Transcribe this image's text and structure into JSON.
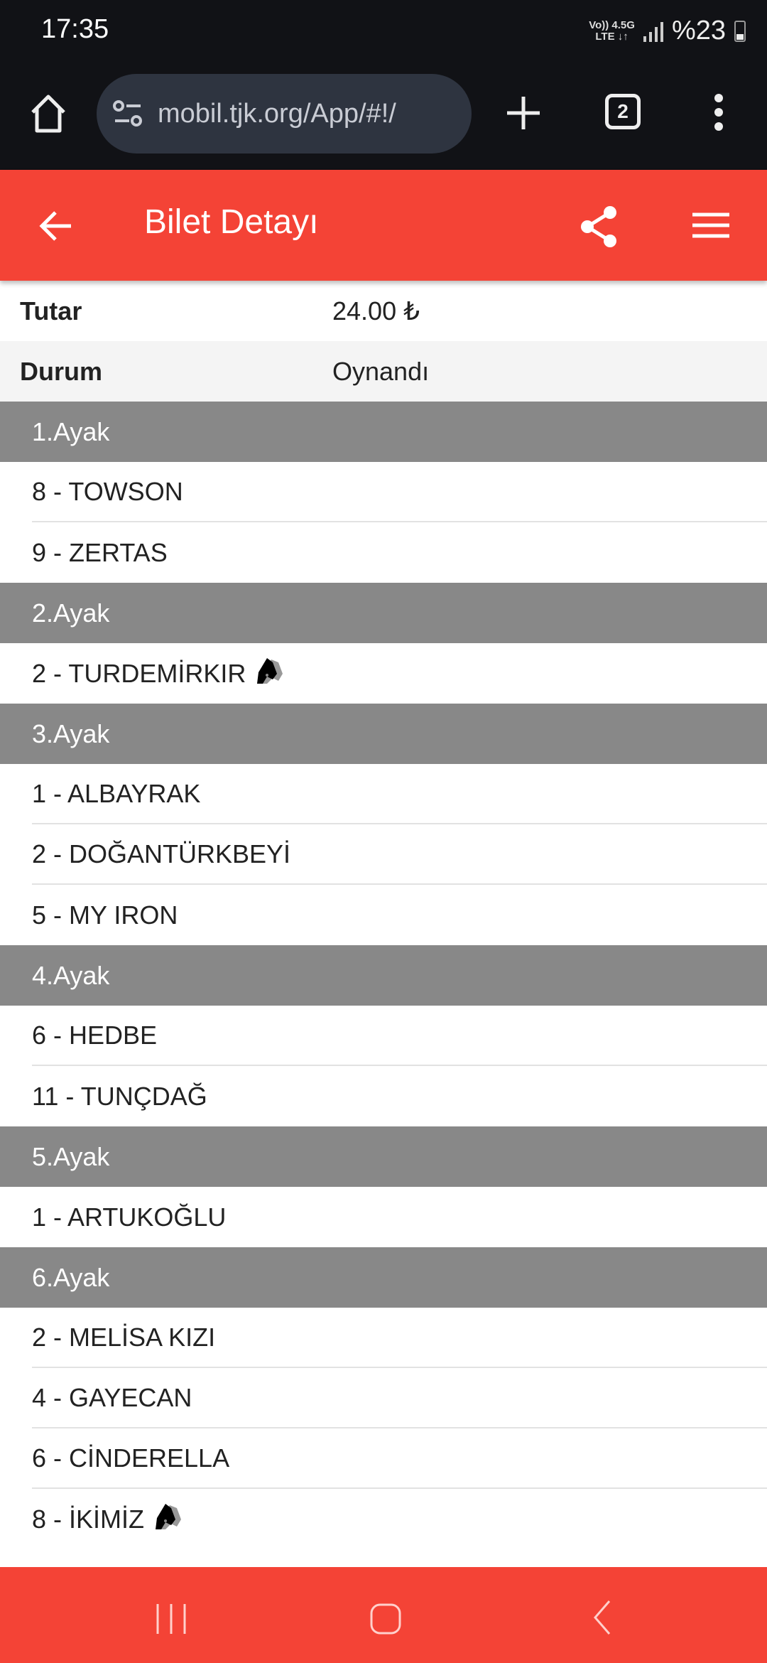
{
  "status_bar": {
    "time": "17:35",
    "network_top": "Vo)) 4.5G",
    "network_bottom": "LTE ↓↑",
    "battery": "%23"
  },
  "browser": {
    "url": "mobil.tjk.org/App/#!/",
    "tab_count": "2",
    "icons": [
      "home-icon",
      "site-settings-icon",
      "new-tab-icon",
      "tabs-icon",
      "more-icon"
    ]
  },
  "app_bar": {
    "title": "Bilet Detayı",
    "accent_color": "#f44336"
  },
  "summary": [
    {
      "label": "Tutar",
      "value": "24.00 ₺"
    },
    {
      "label": "Durum",
      "value": "Oynandı"
    }
  ],
  "legs": [
    {
      "label": "1.Ayak",
      "horses": [
        {
          "name": "8 - TOWSON",
          "icon": false
        },
        {
          "name": "9 - ZERTAS",
          "icon": false
        }
      ]
    },
    {
      "label": "2.Ayak",
      "horses": [
        {
          "name": "2 - TURDEMİRKIR",
          "icon": true
        }
      ]
    },
    {
      "label": "3.Ayak",
      "horses": [
        {
          "name": "1 - ALBAYRAK",
          "icon": false
        },
        {
          "name": "2 - DOĞANTÜRKBEYİ",
          "icon": false
        },
        {
          "name": "5 - MY IRON",
          "icon": false
        }
      ]
    },
    {
      "label": "4.Ayak",
      "horses": [
        {
          "name": "6 - HEDBE",
          "icon": false
        },
        {
          "name": "11 - TUNÇDAĞ",
          "icon": false
        }
      ]
    },
    {
      "label": "5.Ayak",
      "horses": [
        {
          "name": "1 - ARTUKOĞLU",
          "icon": false
        }
      ]
    },
    {
      "label": "6.Ayak",
      "horses": [
        {
          "name": "2 - MELİSA KIZI",
          "icon": false
        },
        {
          "name": "4 - GAYECAN",
          "icon": false
        },
        {
          "name": "6 - CİNDERELLA",
          "icon": false
        },
        {
          "name": "8 - İKİMİZ",
          "icon": true
        }
      ]
    }
  ]
}
